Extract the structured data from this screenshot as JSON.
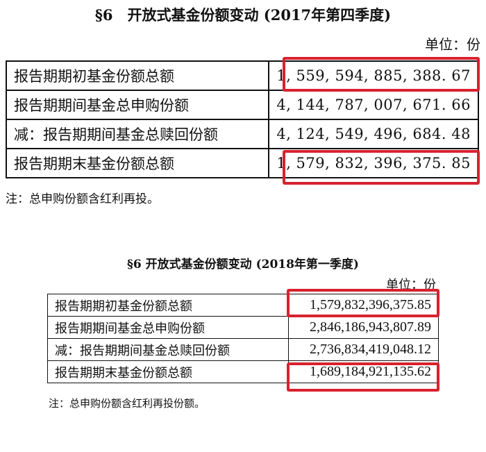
{
  "q4_2017": {
    "title": "§6　开放式基金份额变动 (2017年第四季度)",
    "unit": "单位：份",
    "rows": [
      {
        "label": "报告期期初基金份额总额",
        "value": "1, 559, 594, 885, 388. 67",
        "highlighted": true
      },
      {
        "label": "报告期期间基金总申购份额",
        "value": "4, 144, 787, 007, 671. 66",
        "highlighted": false
      },
      {
        "label": "减：报告期期间基金总赎回份额",
        "value": "4, 124, 549, 496, 684. 48",
        "highlighted": false
      },
      {
        "label": "报告期期末基金份额总额",
        "value": "1, 579, 832, 396, 375. 85",
        "highlighted": true
      }
    ],
    "note": "注：总申购份额含红利再投。"
  },
  "q1_2018": {
    "title": "§6 开放式基金份额变动 (2018年第一季度)",
    "unit": "单位：份",
    "rows": [
      {
        "label": "报告期期初基金份额总额",
        "value": "1,579,832,396,375.85",
        "highlighted": true
      },
      {
        "label": "报告期期间基金总申购份额",
        "value": "2,846,186,943,807.89",
        "highlighted": false
      },
      {
        "label": "减：报告期期间基金总赎回份额",
        "value": "2,736,834,419,048.12",
        "highlighted": false
      },
      {
        "label": "报告期期末基金份额总额",
        "value": "1,689,184,921,135.62",
        "highlighted": true
      }
    ],
    "note": "注：总申购份额含红利再投份额。"
  },
  "highlight_color": "#d8222f"
}
